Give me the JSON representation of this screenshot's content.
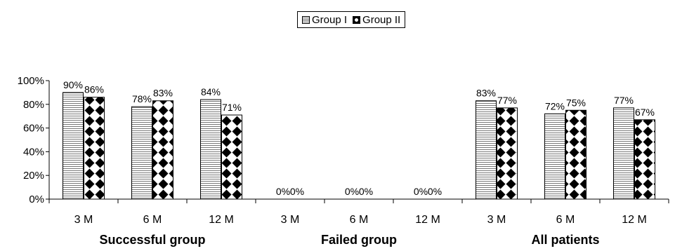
{
  "chart_data": {
    "type": "bar",
    "legend": [
      "Group I",
      "Group II"
    ],
    "legend_position": "top-center",
    "groups": [
      "Successful group",
      "Failed group",
      "All patients"
    ],
    "categories": [
      "3 M",
      "6 M",
      "12 M"
    ],
    "series": [
      {
        "name": "Group I",
        "values": [
          [
            90,
            78,
            84
          ],
          [
            0,
            0,
            0
          ],
          [
            83,
            72,
            77
          ]
        ]
      },
      {
        "name": "Group II",
        "values": [
          [
            86,
            83,
            71
          ],
          [
            0,
            0,
            0
          ],
          [
            77,
            75,
            67
          ]
        ]
      }
    ],
    "data_labels": [
      [
        [
          "90%",
          "86%"
        ],
        [
          "78%",
          "83%"
        ],
        [
          "84%",
          "71%"
        ]
      ],
      [
        [
          "0%",
          "0%"
        ],
        [
          "0%",
          "0%"
        ],
        [
          "0%",
          "0%"
        ]
      ],
      [
        [
          "83%",
          "77%"
        ],
        [
          "72%",
          "75%"
        ],
        [
          "77%",
          "67%"
        ]
      ]
    ],
    "y_ticks": [
      "0%",
      "20%",
      "40%",
      "60%",
      "80%",
      "100%"
    ],
    "ylim": [
      0,
      100
    ],
    "grid": false,
    "colors": {
      "group1_fill": "#ffffff",
      "group1_lines": "#777777",
      "group2_fill": "#000000",
      "group2_dots": "#ffffff"
    }
  }
}
